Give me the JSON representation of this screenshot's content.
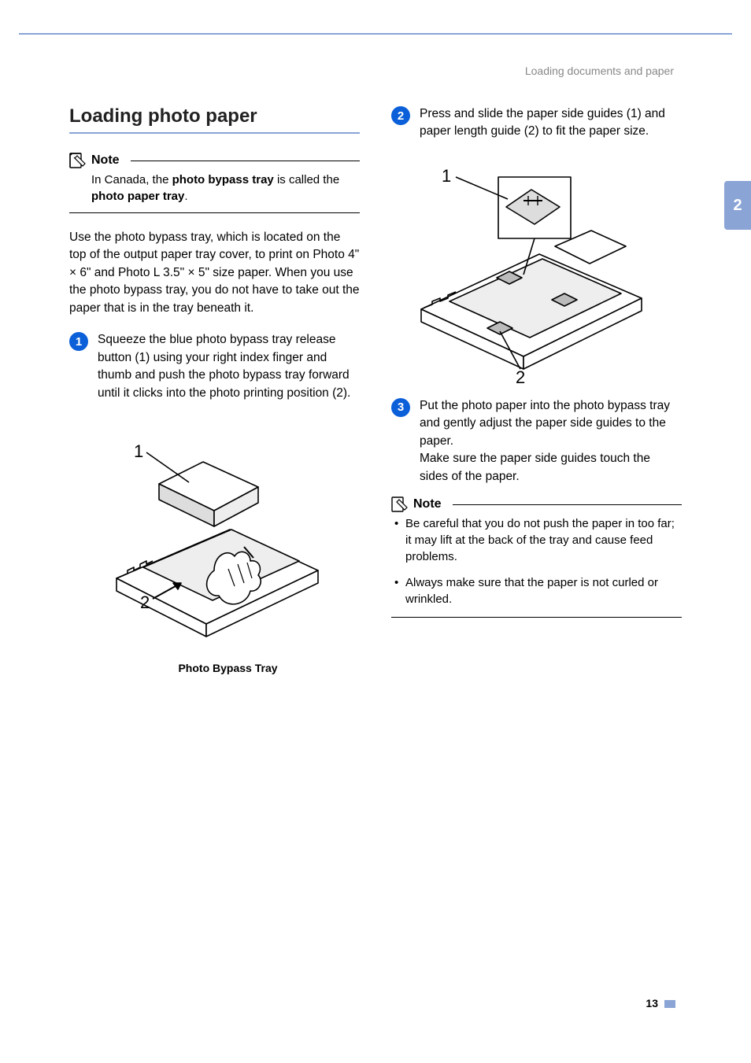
{
  "header": {
    "breadcrumb": "Loading documents and paper"
  },
  "section": {
    "title": "Loading photo paper"
  },
  "note1": {
    "label": "Note",
    "body_html": "In Canada, the <b>photo bypass tray</b> is called the <b>photo paper tray</b>."
  },
  "intro_html": "Use the photo bypass tray, which is located on the top of the output paper tray cover, to print on Photo 4\" × 6\" and Photo L 3.5\" × 5\" size paper. When you use the photo bypass tray, you do not have to take out the paper that is in the tray beneath it.",
  "steps": [
    {
      "num": "1",
      "text": "Squeeze the blue photo bypass tray release button (1) using your right index finger and thumb and push the photo bypass tray forward until it clicks into the photo printing position (2)."
    },
    {
      "num": "2",
      "text": "Press and slide the paper side guides (1) and paper length guide (2) to fit the paper size."
    },
    {
      "num": "3",
      "text": "Put the photo paper into the photo bypass tray and gently adjust the paper side guides to the paper.\nMake sure the paper side guides touch the sides of the paper."
    }
  ],
  "figure1": {
    "caption": "Photo Bypass Tray",
    "label1": "1",
    "label2": "2"
  },
  "figure2": {
    "label1": "1",
    "label2": "2"
  },
  "note2": {
    "label": "Note",
    "bullets": [
      "Be careful that you do not push the paper in too far; it may lift at the back of the tray and cause feed problems.",
      "Always make sure that the paper is not curled or wrinkled."
    ]
  },
  "side_tab": "2",
  "page_number": "13",
  "colors": {
    "accent": "#8aa4d6",
    "badge": "#0b5fd8",
    "page_bg": "#ffffff",
    "outer_bg": "#d3dff4"
  }
}
